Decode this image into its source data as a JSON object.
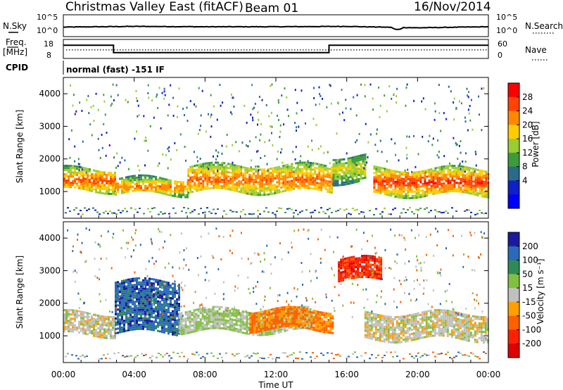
{
  "header": {
    "radar": "Christmas Valley East (fitACF)",
    "beam": "Beam 01",
    "date": "16/Nov/2014"
  },
  "params": {
    "nsky_label": "N.Sky",
    "nsky_ticks": [
      "10^5",
      "10^0"
    ],
    "nsearch_label": "N.Search",
    "nsearch_ticks": [
      "10^5",
      "10^0"
    ],
    "freq_label": "Freq.",
    "freq_unit": "[MHz]",
    "freq_ticks": [
      "18",
      "8"
    ],
    "nave_label": "Nave",
    "nave_ticks": [
      "60",
      "0"
    ],
    "cpid_label": "CPID",
    "cpid_value": "normal (fast) -151 IF"
  },
  "panels": {
    "y_label": "Slant Range [km]",
    "x_label": "Time UT",
    "x_ticks": [
      "00:00",
      "04:00",
      "08:00",
      "12:00",
      "16:00",
      "20:00",
      "00:00"
    ],
    "y_ticks": [
      "4000",
      "3000",
      "2000",
      "1000"
    ]
  },
  "power_scale": {
    "label": "Power [dB]",
    "ticks": [
      "28",
      "24",
      "20",
      "16",
      "12",
      "8",
      "4"
    ],
    "colors": [
      "#ff0000",
      "#ff4400",
      "#ff8800",
      "#ffcc00",
      "#9acd32",
      "#3c9c3c",
      "#2a6a8a",
      "#1020c8",
      "#0000ff"
    ]
  },
  "velocity_scale": {
    "label": "Velocity [m s⁻¹]",
    "ticks": [
      "200",
      "100",
      "50",
      "15",
      "-15",
      "-50",
      "-100",
      "-200"
    ],
    "colors": [
      "#1a1aa0",
      "#2a6ab8",
      "#2e8b57",
      "#80c040",
      "#c0c0c0",
      "#ffa000",
      "#ff6000",
      "#ff2000",
      "#e00000"
    ]
  },
  "chart_data": [
    {
      "type": "line",
      "title": "N.Sky / N.Search",
      "x": [
        "00:00",
        "04:00",
        "08:00",
        "12:00",
        "16:00",
        "20:00",
        "00:00"
      ],
      "ylim_labels": [
        "10^0",
        "10^5"
      ],
      "series": [
        {
          "name": "N.Sky",
          "values": [
            2.1,
            2.3,
            2.2,
            2.2,
            2.3,
            1.9,
            2.2
          ]
        }
      ]
    },
    {
      "type": "line",
      "title": "Freq. [MHz] / Nave",
      "x": [
        "00:00",
        "02:50",
        "02:50",
        "15:00",
        "15:00",
        "24:00"
      ],
      "ylim": [
        8,
        18
      ],
      "series": [
        {
          "name": "Freq.",
          "values": [
            15.5,
            15.5,
            10.5,
            10.5,
            15.5,
            15.5
          ]
        },
        {
          "name": "Nave",
          "values": [
            26,
            26,
            26,
            26,
            26,
            26
          ]
        }
      ]
    },
    {
      "type": "heatmap",
      "title": "Power [dB]",
      "xlabel": "Time UT",
      "ylabel": "Slant Range [km]",
      "xlim": [
        "00:00",
        "24:00"
      ],
      "ylim": [
        180,
        4500
      ],
      "clim": [
        0,
        30
      ],
      "bands": [
        {
          "start_h": 0.0,
          "end_h": 2.9,
          "range_km": [
            1000,
            1700
          ],
          "power_db": 26
        },
        {
          "start_h": 2.9,
          "end_h": 7.0,
          "range_km": [
            900,
            1400
          ],
          "power_db": 24
        },
        {
          "start_h": 7.0,
          "end_h": 15.2,
          "range_km": [
            950,
            1800
          ],
          "power_db": 25
        },
        {
          "start_h": 15.2,
          "end_h": 17.0,
          "range_km": [
            1300,
            2100
          ],
          "power_db": 18
        },
        {
          "start_h": 17.5,
          "end_h": 24.0,
          "range_km": [
            900,
            1700
          ],
          "power_db": 28
        }
      ]
    },
    {
      "type": "heatmap",
      "title": "Velocity [m s⁻¹]",
      "xlabel": "Time UT",
      "ylabel": "Slant Range [km]",
      "xlim": [
        "00:00",
        "24:00"
      ],
      "ylim": [
        180,
        4500
      ],
      "clim": [
        -200,
        200
      ],
      "bands": [
        {
          "start_h": 0.0,
          "end_h": 2.9,
          "range_km": [
            1000,
            1700
          ],
          "velocity": 0
        },
        {
          "start_h": 2.9,
          "end_h": 6.5,
          "range_km": [
            1100,
            2700
          ],
          "velocity": 150
        },
        {
          "start_h": 6.5,
          "end_h": 14.0,
          "range_km": [
            1100,
            1800
          ],
          "velocity": 30
        },
        {
          "start_h": 10.5,
          "end_h": 15.2,
          "range_km": [
            1200,
            1800
          ],
          "velocity": -80
        },
        {
          "start_h": 15.5,
          "end_h": 18.0,
          "range_km": [
            2700,
            3400
          ],
          "velocity": -150
        },
        {
          "start_h": 17.0,
          "end_h": 24.0,
          "range_km": [
            900,
            1700
          ],
          "velocity": 0
        }
      ]
    }
  ]
}
